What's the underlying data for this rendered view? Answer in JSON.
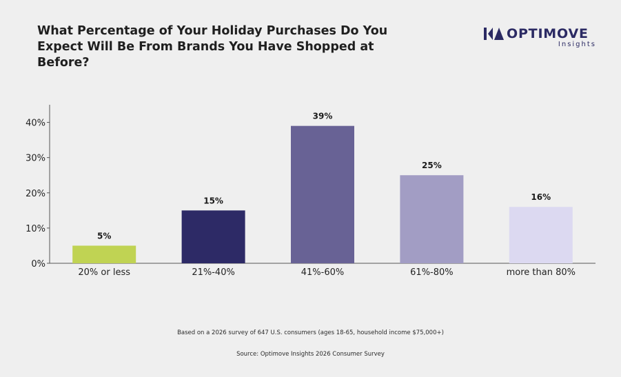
{
  "header": {
    "title": "What Percentage of Your Holiday Purchases Do You Expect Will Be From Brands You Have Shopped at Before?"
  },
  "brand": {
    "name": "OPTIMOVE",
    "sub": "Insights",
    "logo_icon": "optimove-logo-icon"
  },
  "chart_data": {
    "type": "bar",
    "categories": [
      "20% or less",
      "21%-40%",
      "41%-60%",
      "61%-80%",
      "more than 80%"
    ],
    "values": [
      5,
      15,
      39,
      25,
      16
    ],
    "data_labels": [
      "5%",
      "15%",
      "39%",
      "25%",
      "16%"
    ],
    "bar_colors": [
      "#c0d353",
      "#2d2a66",
      "#686295",
      "#a29dc4",
      "#dcd9f1"
    ],
    "yticks": [
      0,
      10,
      20,
      30,
      40
    ],
    "ytick_labels": [
      "0%",
      "10%",
      "20%",
      "30%",
      "40%"
    ],
    "ylim": [
      0,
      45
    ],
    "grid": false,
    "legend": "none"
  },
  "footer": {
    "note": "Based on a 2026 survey of 647 U.S. consumers (ages 18-65, household income $75,000+)",
    "source": "Source: Optimove Insights 2026 Consumer Survey"
  },
  "colors": {
    "background": "#efefef",
    "brand": "#2b2a63",
    "axis": "#555555"
  }
}
